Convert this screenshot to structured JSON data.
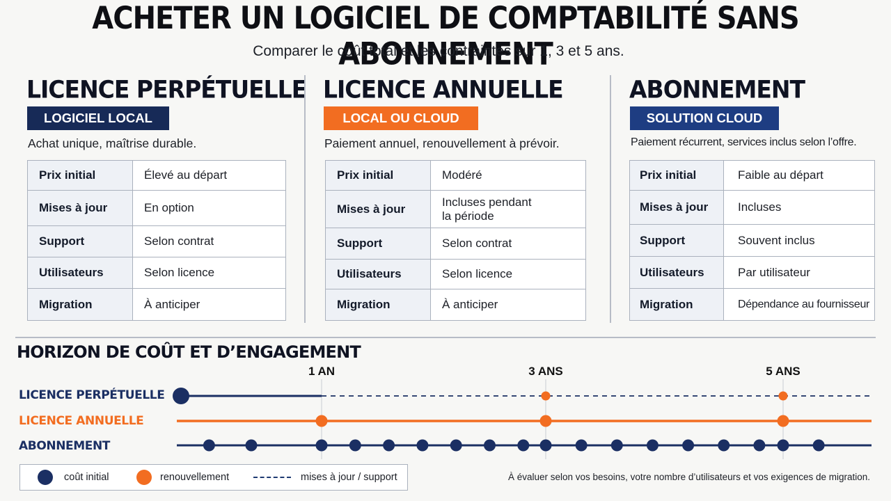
{
  "title": "ACHETER UN LOGICIEL DE COMPTABILITÉ SANS ABONNEMENT",
  "subtitle": "Comparer le coût total et les contraintes sur 1, 3 et 5 ans.",
  "colors": {
    "navy": "#1b2f63",
    "orange": "#f26d21",
    "badge_navy": "#172a57",
    "badge_blue": "#1e3d82"
  },
  "columns": [
    {
      "title": "LICENCE PERPÉTUELLE",
      "badge": "LOGICIEL LOCAL",
      "badge_color": "#172a57",
      "description": "Achat unique, maîtrise durable.",
      "rows": [
        {
          "key": "Prix initial",
          "value": "Élevé au départ"
        },
        {
          "key": "Mises à jour",
          "value": "En option"
        },
        {
          "key": "Support",
          "value": "Selon contrat"
        },
        {
          "key": "Utilisateurs",
          "value": "Selon licence"
        },
        {
          "key": "Migration",
          "value": "À anticiper"
        }
      ]
    },
    {
      "title": "LICENCE ANNUELLE",
      "badge": "LOCAL OU CLOUD",
      "badge_color": "#f26d21",
      "description": "Paiement annuel, renouvellement à prévoir.",
      "rows": [
        {
          "key": "Prix initial",
          "value": "Modéré"
        },
        {
          "key": "Mises à jour",
          "value": "Incluses pendant la période"
        },
        {
          "key": "Support",
          "value": "Selon contrat"
        },
        {
          "key": "Utilisateurs",
          "value": "Selon licence"
        },
        {
          "key": "Migration",
          "value": "À anticiper"
        }
      ]
    },
    {
      "title": "ABONNEMENT",
      "badge": "SOLUTION CLOUD",
      "badge_color": "#1e3d82",
      "description": "Paiement récurrent, services inclus selon l’offre.",
      "rows": [
        {
          "key": "Prix initial",
          "value": "Faible au départ"
        },
        {
          "key": "Mises à jour",
          "value": "Incluses"
        },
        {
          "key": "Support",
          "value": "Souvent inclus"
        },
        {
          "key": "Utilisateurs",
          "value": "Par utilisateur"
        },
        {
          "key": "Migration",
          "value": "Dépendance au fournisseur"
        }
      ]
    }
  ],
  "horizon": {
    "title": "HORIZON DE COÛT ET D’ENGAGEMENT",
    "ticks": [
      {
        "label": "1 AN",
        "year": 1
      },
      {
        "label": "3 ANS",
        "year": 3
      },
      {
        "label": "5 ANS",
        "year": 5
      }
    ],
    "rows": [
      {
        "label": "LICENCE PERPÉTUELLE",
        "color": "#1b2f63"
      },
      {
        "label": "LICENCE ANNUELLE",
        "color": "#f26d21"
      },
      {
        "label": "ABONNEMENT",
        "color": "#1b2f63"
      }
    ],
    "perpetual": {
      "initial_cost_year": 0,
      "solid_until_year": 1,
      "renewal_years": [
        3,
        5
      ]
    },
    "annual": {
      "renewal_years": [
        1,
        3,
        5
      ]
    },
    "subscription": {
      "payment_years": [
        0.2,
        0.5,
        1,
        1.3,
        1.6,
        1.9,
        2.2,
        2.5,
        2.8,
        3,
        3.3,
        3.6,
        3.9,
        4.2,
        4.5,
        4.8,
        5,
        5.3
      ]
    }
  },
  "legend": {
    "initial": "coût initial",
    "renewal": "renouvellement",
    "updates": "mises à jour / support"
  },
  "note": "À évaluer selon vos besoins, votre nombre d’utilisateurs et vos exigences de migration."
}
